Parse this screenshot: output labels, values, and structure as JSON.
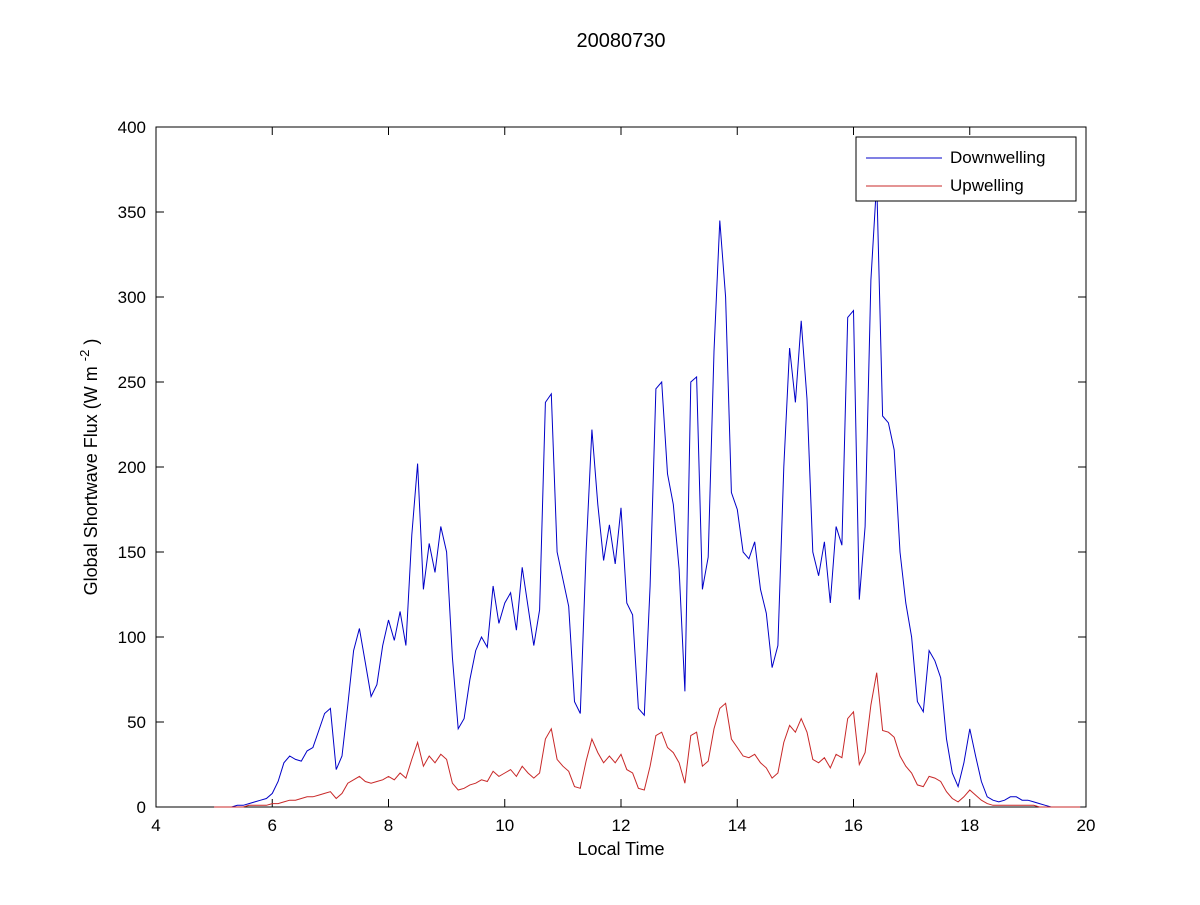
{
  "chart_data": {
    "type": "line",
    "title": "20080730",
    "xlabel": "Local Time",
    "ylabel": "Global Shortwave Flux (W m⁻²)",
    "ylabel_parts": {
      "main": "Global Shortwave Flux (W m",
      "sup": "-2",
      "end": ")"
    },
    "xlim": [
      4,
      20
    ],
    "ylim": [
      0,
      400
    ],
    "xticks": [
      4,
      6,
      8,
      10,
      12,
      14,
      16,
      18,
      20
    ],
    "yticks": [
      0,
      50,
      100,
      150,
      200,
      250,
      300,
      350,
      400
    ],
    "grid": false,
    "legend_position": "top-right",
    "x0": 5.0,
    "dx": 0.1,
    "series": [
      {
        "name": "Downwelling",
        "color": "#0000C8",
        "values": [
          0,
          0,
          0,
          0,
          1,
          1,
          2,
          3,
          4,
          5,
          8,
          15,
          26,
          30,
          28,
          27,
          33,
          35,
          45,
          55,
          58,
          22,
          30,
          60,
          92,
          105,
          85,
          65,
          72,
          95,
          110,
          98,
          115,
          95,
          160,
          202,
          128,
          155,
          138,
          165,
          150,
          88,
          46,
          52,
          75,
          92,
          100,
          94,
          130,
          108,
          120,
          126,
          104,
          141,
          118,
          95,
          116,
          238,
          243,
          150,
          134,
          118,
          62,
          55,
          150,
          222,
          178,
          145,
          166,
          143,
          176,
          120,
          113,
          58,
          54,
          130,
          246,
          250,
          196,
          178,
          140,
          68,
          250,
          253,
          128,
          147,
          268,
          345,
          300,
          185,
          175,
          150,
          146,
          156,
          128,
          114,
          82,
          95,
          200,
          270,
          238,
          286,
          240,
          150,
          136,
          156,
          120,
          165,
          154,
          288,
          292,
          122,
          165,
          310,
          368,
          230,
          226,
          210,
          150,
          120,
          100,
          62,
          56,
          92,
          86,
          76,
          40,
          20,
          12,
          26,
          46,
          30,
          15,
          6,
          4,
          3,
          4,
          6,
          6,
          4,
          4,
          3,
          2,
          1,
          0,
          0,
          0,
          0,
          0,
          0
        ]
      },
      {
        "name": "Upwelling",
        "color": "#C82828",
        "values": [
          0,
          0,
          0,
          0,
          0,
          0,
          1,
          1,
          1,
          1,
          2,
          2,
          3,
          4,
          4,
          5,
          6,
          6,
          7,
          8,
          9,
          5,
          8,
          14,
          16,
          18,
          15,
          14,
          15,
          16,
          18,
          16,
          20,
          17,
          28,
          38,
          24,
          30,
          26,
          31,
          28,
          14,
          10,
          11,
          13,
          14,
          16,
          15,
          21,
          18,
          20,
          22,
          18,
          24,
          20,
          17,
          20,
          40,
          46,
          28,
          24,
          21,
          12,
          11,
          27,
          40,
          32,
          26,
          30,
          26,
          31,
          22,
          20,
          11,
          10,
          24,
          42,
          44,
          35,
          32,
          26,
          14,
          42,
          44,
          24,
          27,
          46,
          58,
          61,
          40,
          35,
          30,
          29,
          31,
          26,
          23,
          17,
          20,
          38,
          48,
          44,
          52,
          44,
          28,
          26,
          29,
          23,
          31,
          29,
          52,
          56,
          25,
          32,
          60,
          79,
          45,
          44,
          41,
          30,
          24,
          20,
          13,
          12,
          18,
          17,
          15,
          9,
          5,
          3,
          6,
          10,
          7,
          4,
          2,
          1,
          1,
          1,
          1,
          1,
          1,
          1,
          1,
          0,
          0,
          0,
          0,
          0,
          0,
          0,
          0
        ]
      }
    ]
  }
}
